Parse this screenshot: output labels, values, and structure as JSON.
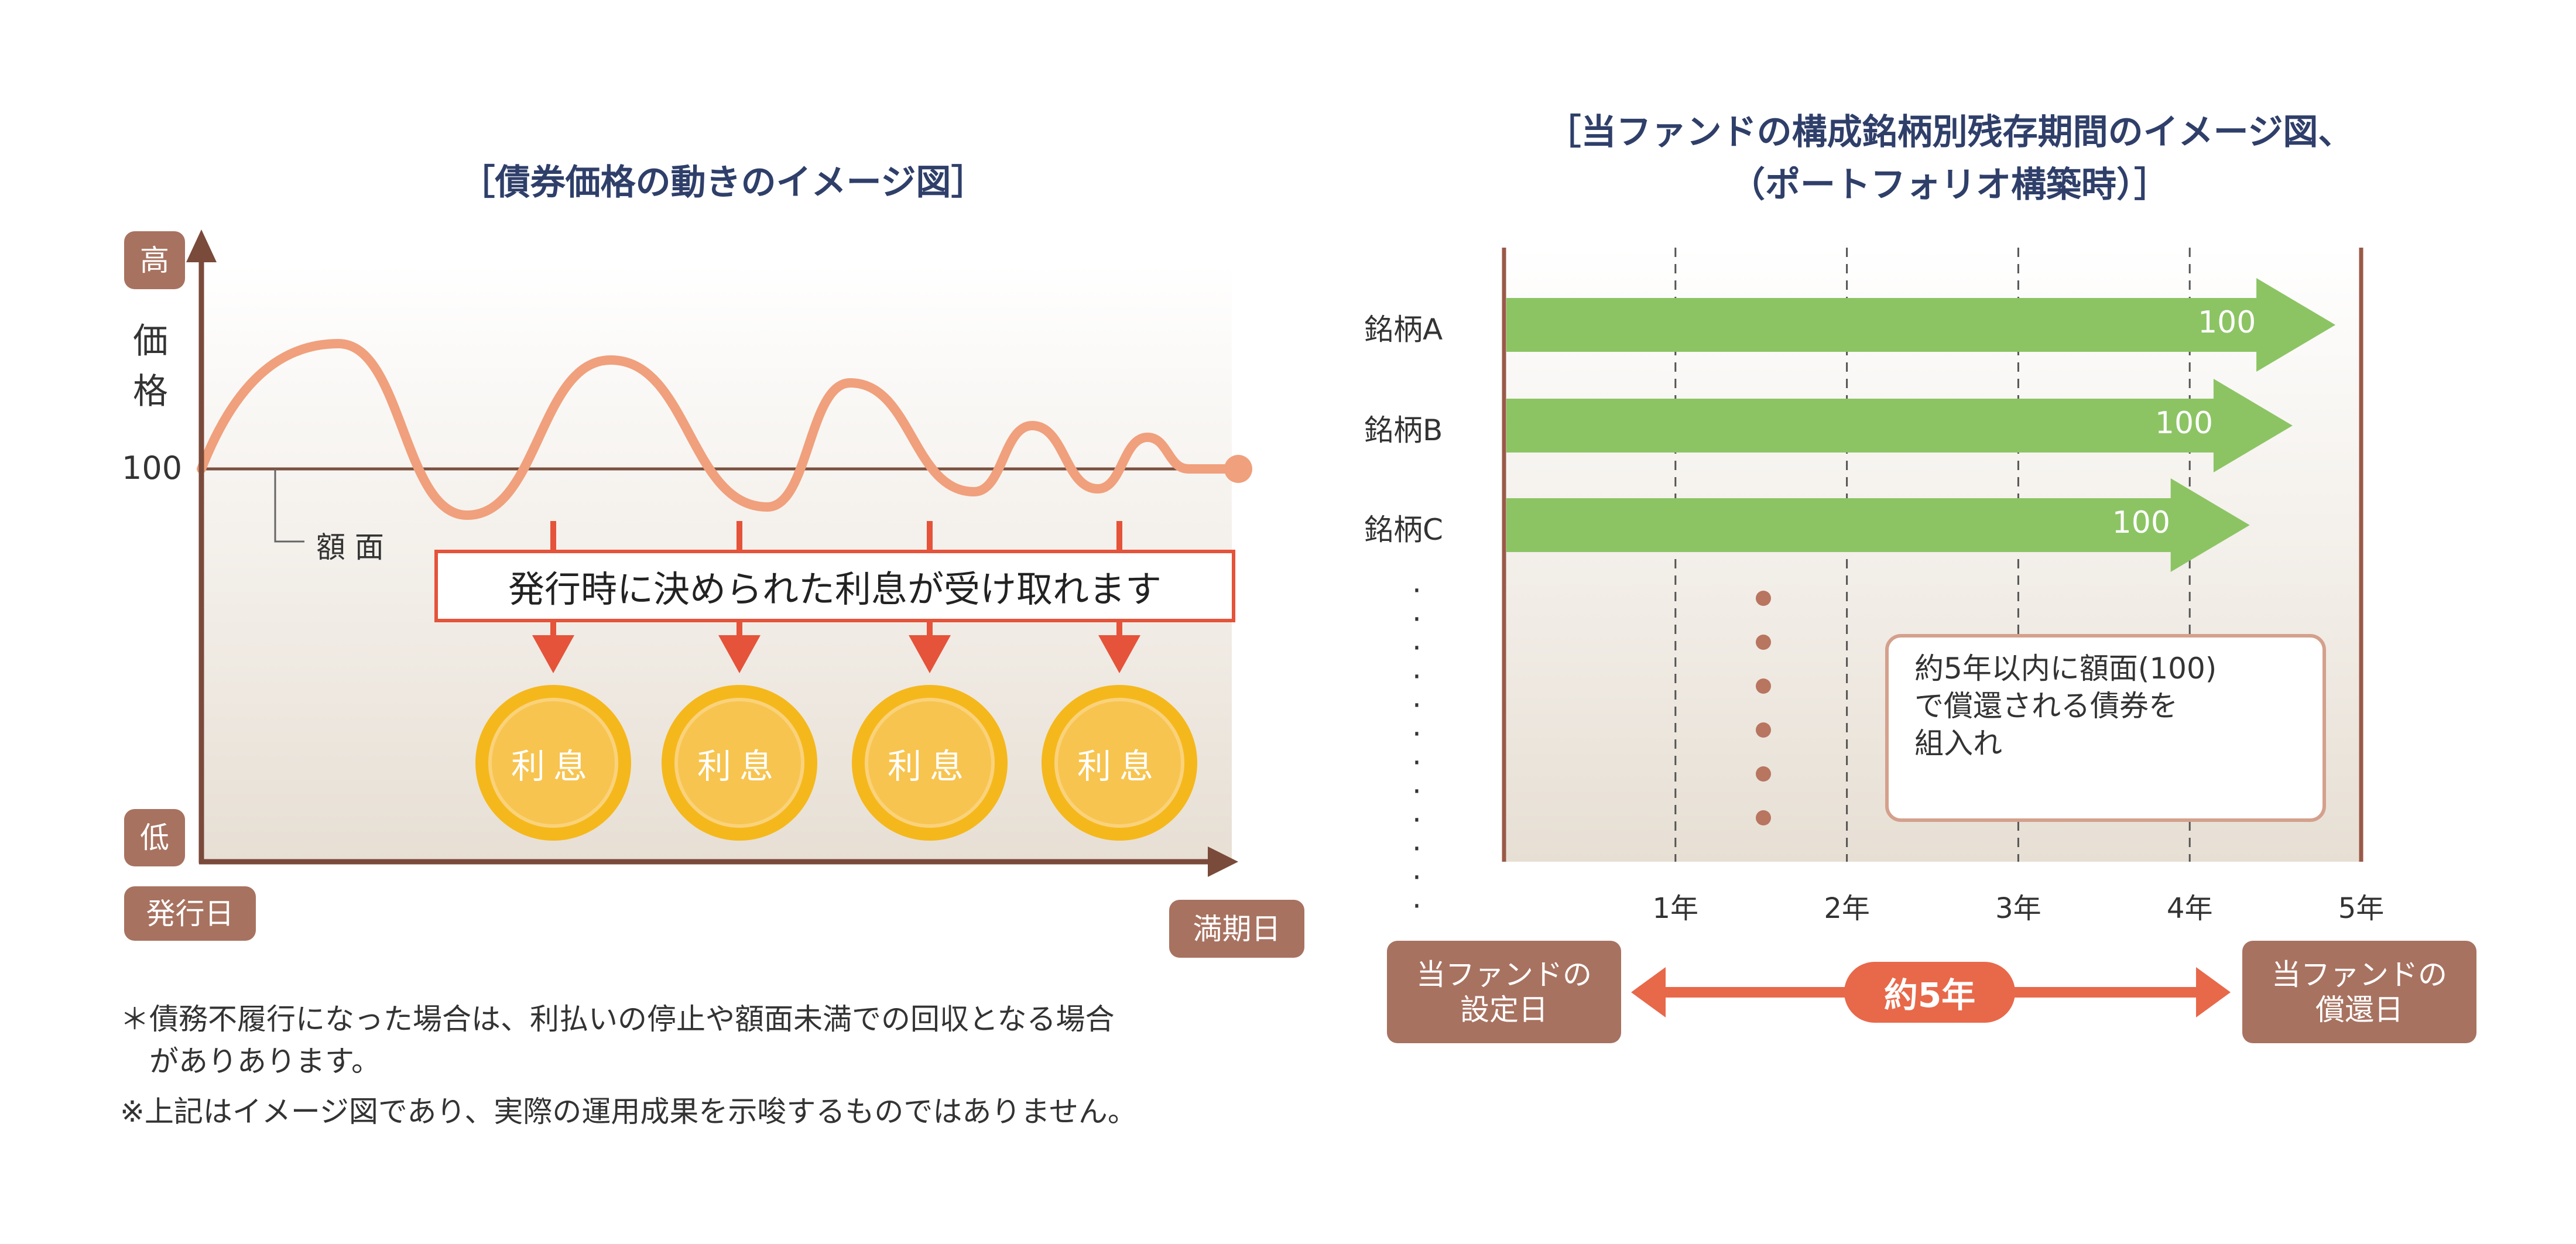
{
  "left": {
    "title": "［債券価格の動きのイメージ図］",
    "y_high": "高",
    "y_low": "低",
    "y_label": "価格",
    "par_value": "100",
    "par_label": "額 面",
    "x_start": "発行日",
    "x_end": "満期日",
    "message": "発行時に決められた利息が受け取れます",
    "coins": [
      "利息",
      "利息",
      "利息",
      "利息"
    ]
  },
  "right": {
    "title_line1": "［当ファンドの構成銘柄別残存期間のイメージ図、",
    "title_line2": "（ポートフォリオ構築時）］",
    "bars": [
      {
        "label": "銘柄A",
        "value": "100",
        "years": 4.85
      },
      {
        "label": "銘柄B",
        "value": "100",
        "years": 4.6
      },
      {
        "label": "銘柄C",
        "value": "100",
        "years": 4.35
      }
    ],
    "years": [
      "1年",
      "2年",
      "3年",
      "4年",
      "5年"
    ],
    "note": [
      "約5年以内に額面(100)",
      "で償還される債券を",
      "組入れ"
    ],
    "start_box": [
      "当ファンドの",
      "設定日"
    ],
    "end_box": [
      "当ファンドの",
      "償還日"
    ],
    "span_label": "約5年"
  },
  "footnotes": [
    "＊債務不履行になった場合は、利払いの停止や額面未満での回収となる場合",
    "　がありあります。",
    "※上記はイメージ図であり、実際の運用成果を示唆するものではありません。"
  ],
  "colors": {
    "brown": "#a87260",
    "title": "#2f3f6a",
    "wave": "#f0a07c",
    "green": "#8cc464",
    "red": "#e5533a",
    "coin": "#f5b81c",
    "coin_inner": "#f7c450"
  }
}
